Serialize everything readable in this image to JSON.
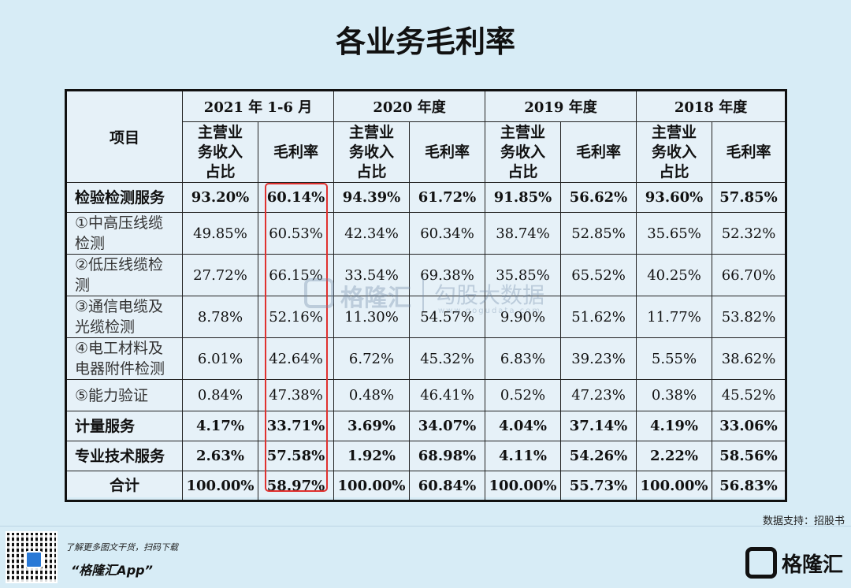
{
  "title": "各业务毛利率",
  "table": {
    "item_header": "项目",
    "periods": [
      "2021 年 1-6 月",
      "2020 年度",
      "2019 年度",
      "2018 年度"
    ],
    "sub_headers": {
      "revenue_share": [
        "主营业",
        "务收入",
        "占比"
      ],
      "gross_margin": "毛利率"
    },
    "rows": [
      {
        "label": [
          "检验检测服务"
        ],
        "bold": true,
        "values": [
          "93.20%",
          "60.14%",
          "94.39%",
          "61.72%",
          "91.85%",
          "56.62%",
          "93.60%",
          "57.85%"
        ]
      },
      {
        "label": [
          "①中高压线缆",
          "检测"
        ],
        "bold": false,
        "values": [
          "49.85%",
          "60.53%",
          "42.34%",
          "60.34%",
          "38.74%",
          "52.85%",
          "35.65%",
          "52.32%"
        ]
      },
      {
        "label": [
          "②低压线缆检",
          "测"
        ],
        "bold": false,
        "values": [
          "27.72%",
          "66.15%",
          "33.54%",
          "69.38%",
          "35.85%",
          "65.52%",
          "40.25%",
          "66.70%"
        ]
      },
      {
        "label": [
          "③通信电缆及",
          "光缆检测"
        ],
        "bold": false,
        "values": [
          "8.78%",
          "52.16%",
          "11.30%",
          "54.57%",
          "9.90%",
          "51.62%",
          "11.77%",
          "53.82%"
        ]
      },
      {
        "label": [
          "④电工材料及",
          "电器附件检测"
        ],
        "bold": false,
        "values": [
          "6.01%",
          "42.64%",
          "6.72%",
          "45.32%",
          "6.83%",
          "39.23%",
          "5.55%",
          "38.62%"
        ]
      },
      {
        "label": [
          "⑤能力验证"
        ],
        "bold": false,
        "values": [
          "0.84%",
          "47.38%",
          "0.48%",
          "46.41%",
          "0.52%",
          "47.23%",
          "0.38%",
          "45.52%"
        ]
      },
      {
        "label": [
          "计量服务"
        ],
        "bold": true,
        "values": [
          "4.17%",
          "33.71%",
          "3.69%",
          "34.07%",
          "4.04%",
          "37.14%",
          "4.19%",
          "33.06%"
        ]
      },
      {
        "label": [
          "专业技术服务"
        ],
        "bold": true,
        "values": [
          "2.63%",
          "57.58%",
          "1.92%",
          "68.98%",
          "4.11%",
          "54.26%",
          "2.22%",
          "58.56%"
        ]
      },
      {
        "label": [
          "合计"
        ],
        "bold": true,
        "center": true,
        "values": [
          "100.00%",
          "58.97%",
          "100.00%",
          "60.84%",
          "100.00%",
          "55.73%",
          "100.00%",
          "56.83%"
        ]
      }
    ]
  },
  "watermark": {
    "name": "格隆汇",
    "name2": "勾股大数据",
    "url": "www.gogudata.com"
  },
  "source": "数据支持：招股书",
  "footer": {
    "promo_line1": "了解更多图文干货，扫码下载",
    "promo_line2": "“格隆汇App”",
    "brand": "格隆汇"
  },
  "colors": {
    "background": "#d7ecf6",
    "highlight": "#e0312f"
  }
}
